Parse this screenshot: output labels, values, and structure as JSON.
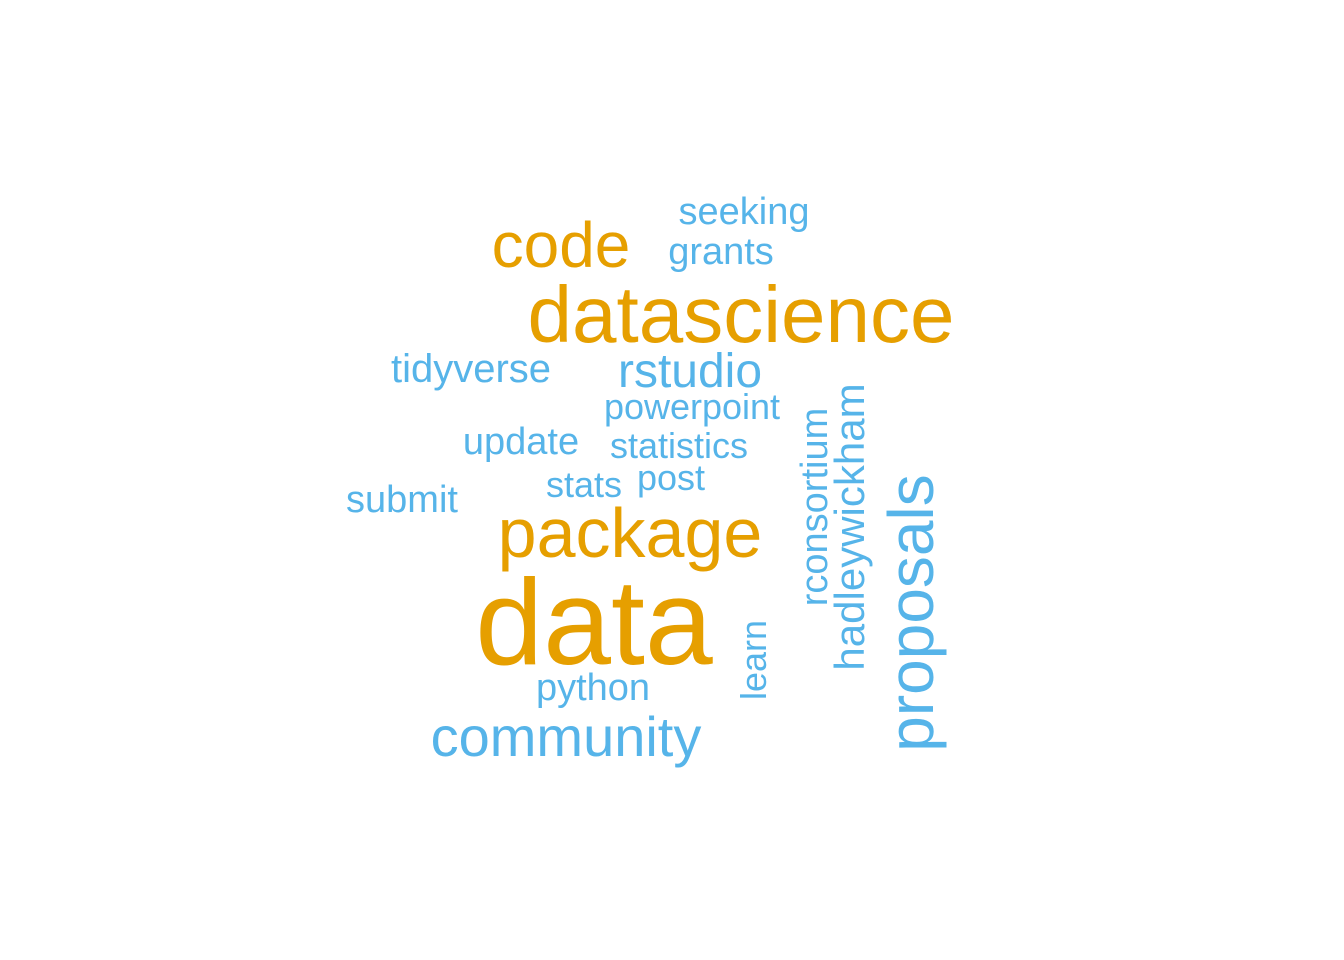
{
  "palette": {
    "high": "#E69F00",
    "low": "#56B4E9"
  },
  "words": [
    {
      "text": "data",
      "tier": "high",
      "rotated": false
    },
    {
      "text": "datascience",
      "tier": "high",
      "rotated": false
    },
    {
      "text": "package",
      "tier": "high",
      "rotated": false
    },
    {
      "text": "code",
      "tier": "high",
      "rotated": false
    },
    {
      "text": "proposals",
      "tier": "low",
      "rotated": true
    },
    {
      "text": "community",
      "tier": "low",
      "rotated": false
    },
    {
      "text": "rstudio",
      "tier": "low",
      "rotated": false
    },
    {
      "text": "hadleywickham",
      "tier": "low",
      "rotated": true
    },
    {
      "text": "rconsortium",
      "tier": "low",
      "rotated": true
    },
    {
      "text": "seeking",
      "tier": "low",
      "rotated": false
    },
    {
      "text": "grants",
      "tier": "low",
      "rotated": false
    },
    {
      "text": "tidyverse",
      "tier": "low",
      "rotated": false
    },
    {
      "text": "powerpoint",
      "tier": "low",
      "rotated": false
    },
    {
      "text": "update",
      "tier": "low",
      "rotated": false
    },
    {
      "text": "statistics",
      "tier": "low",
      "rotated": false
    },
    {
      "text": "submit",
      "tier": "low",
      "rotated": false
    },
    {
      "text": "stats",
      "tier": "low",
      "rotated": false
    },
    {
      "text": "post",
      "tier": "low",
      "rotated": false
    },
    {
      "text": "python",
      "tier": "low",
      "rotated": false
    },
    {
      "text": "learn",
      "tier": "low",
      "rotated": true
    }
  ]
}
